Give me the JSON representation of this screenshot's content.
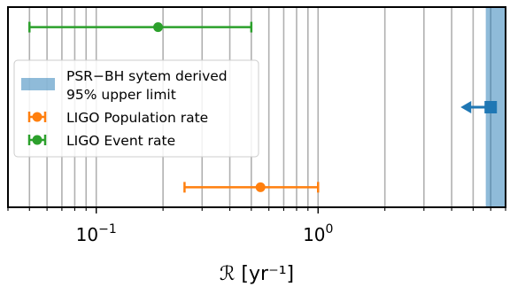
{
  "chart_data": {
    "type": "errorbar",
    "xlabel": "ℛ [yr⁻¹]",
    "xscale": "log",
    "xlim": [
      0.04,
      7.0
    ],
    "ylim": [
      0,
      1
    ],
    "grid": "x-minor",
    "legend_position": "center-left",
    "xtick_labels": [
      {
        "value": 0.1,
        "base": "10",
        "exp": "−1"
      },
      {
        "value": 1.0,
        "base": "10",
        "exp": "0"
      }
    ],
    "series": [
      {
        "name": "LIGO Event rate",
        "color": "#2ca02c",
        "marker": "circle",
        "x": 0.19,
        "xerr": [
          0.05,
          0.5
        ],
        "y": 0.9
      },
      {
        "name": "LIGO Population rate",
        "color": "#ff7f0e",
        "marker": "circle",
        "x": 0.55,
        "xerr": [
          0.25,
          1.0
        ],
        "y": 0.1
      },
      {
        "name": "PSR−BH sytem derived upper limit",
        "color": "#1f77b4",
        "marker": "square",
        "x": 6.0,
        "upper_limit": true,
        "y": 0.5
      }
    ],
    "bands": [
      {
        "name_lines": [
          "PSR−BH sytem derived",
          " 95% upper limit"
        ],
        "color": "#1f77b4",
        "alpha": 0.5,
        "x0": 5.7,
        "x1": 7.0
      }
    ],
    "legend_entries": [
      {
        "kind": "band",
        "lines": [
          "PSR−BH sytem derived",
          " 95% upper limit"
        ],
        "color": "#1f77b4"
      },
      {
        "kind": "errorbar",
        "lines": [
          "LIGO Population rate"
        ],
        "color": "#ff7f0e"
      },
      {
        "kind": "errorbar",
        "lines": [
          "LIGO Event rate"
        ],
        "color": "#2ca02c"
      }
    ]
  }
}
